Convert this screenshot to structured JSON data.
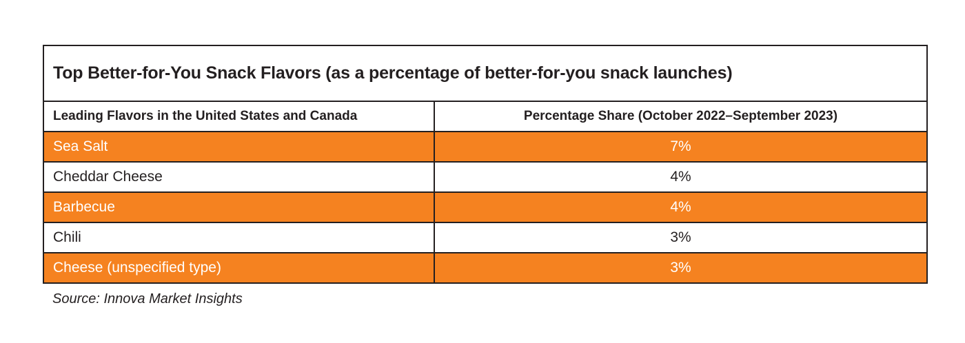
{
  "table": {
    "title": "Top Better-for-You Snack Flavors (as a percentage of better-for-you snack launches)",
    "columns": [
      "Leading Flavors in the United States and Canada",
      "Percentage Share (October 2022–September 2023)"
    ],
    "rows": [
      {
        "flavor": "Sea Salt",
        "share": "7%",
        "highlight": true
      },
      {
        "flavor": "Cheddar Cheese",
        "share": "4%",
        "highlight": false
      },
      {
        "flavor": "Barbecue",
        "share": "4%",
        "highlight": true
      },
      {
        "flavor": "Chili",
        "share": "3%",
        "highlight": false
      },
      {
        "flavor": "Cheese (unspecified type)",
        "share": "3%",
        "highlight": true
      }
    ],
    "source": "Source: Innova Market Insights"
  },
  "colors": {
    "highlight_orange": "#F58220",
    "border_ink": "#231F20",
    "text_dark": "#231F20",
    "text_light": "#FFFFFF"
  },
  "chart_data": {
    "type": "table",
    "title": "Top Better-for-You Snack Flavors (as a percentage of better-for-you snack launches)",
    "columns": [
      "Leading Flavors in the United States and Canada",
      "Percentage Share (October 2022–September 2023)"
    ],
    "categories": [
      "Sea Salt",
      "Cheddar Cheese",
      "Barbecue",
      "Chili",
      "Cheese (unspecified type)"
    ],
    "values": [
      7,
      4,
      4,
      3,
      3
    ],
    "value_unit": "%",
    "highlighted_rows": [
      0,
      2,
      4
    ],
    "source": "Source: Innova Market Insights"
  }
}
